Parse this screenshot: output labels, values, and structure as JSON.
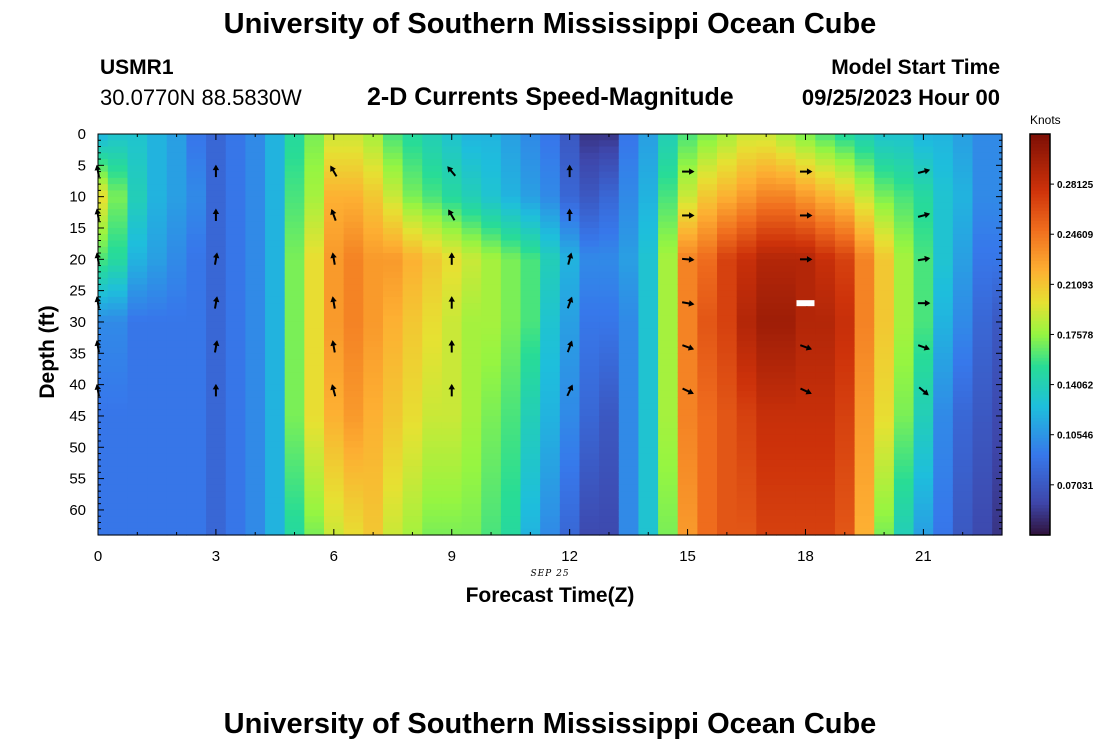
{
  "header": {
    "title": "University of Southern Mississippi Ocean Cube",
    "station": "USMR1",
    "coords": "30.0770N  88.5830W",
    "subtitle": "2-D Currents Speed-Magnitude",
    "start_label": "Model Start Time",
    "start_time": "09/25/2023 Hour 00"
  },
  "footer": {
    "title": "University of Southern Mississippi Ocean Cube"
  },
  "colorbar": {
    "title": "Knots",
    "tick_labels": [
      "0.28125",
      "0.24609",
      "0.21093",
      "0.17578",
      "0.14062",
      "0.10546",
      "0.07031"
    ],
    "tick_values": [
      0.28125,
      0.24609,
      0.21093,
      0.17578,
      0.14062,
      0.10546,
      0.07031
    ],
    "range": [
      0.0351,
      0.3164
    ]
  },
  "chart_data": {
    "type": "heatmap",
    "title": "2-D Currents Speed-Magnitude",
    "xlabel": "Forecast Time(Z)",
    "ylabel": "Depth (ft)",
    "date_label": "SEP 25",
    "x_ticks": [
      0,
      3,
      6,
      9,
      12,
      15,
      18,
      21
    ],
    "y_ticks": [
      0,
      5,
      10,
      15,
      20,
      25,
      30,
      35,
      40,
      45,
      50,
      55,
      60
    ],
    "xlim": [
      0,
      23
    ],
    "ylim": [
      0,
      64
    ],
    "units": "knots",
    "profile_hours": [
      0,
      0.5,
      1,
      1.5,
      2,
      2.5,
      3,
      3.5,
      4,
      4.5,
      5,
      5.5,
      6,
      6.5,
      7,
      7.5,
      8,
      8.5,
      9,
      9.5,
      10,
      10.5,
      11,
      11.5,
      12,
      12.5,
      13,
      13.5,
      14,
      14.5,
      15,
      15.5,
      16,
      16.5,
      17,
      17.5,
      18,
      18.5,
      19,
      19.5,
      20,
      20.5,
      21,
      21.5,
      22,
      22.5,
      23
    ],
    "profile_depths": [
      0,
      10,
      20,
      30,
      45,
      64
    ],
    "speed_profiles": [
      [
        0.12,
        0.2,
        0.16,
        0.1,
        0.09,
        0.09
      ],
      [
        0.13,
        0.17,
        0.15,
        0.1,
        0.09,
        0.09
      ],
      [
        0.13,
        0.14,
        0.12,
        0.09,
        0.09,
        0.09
      ],
      [
        0.12,
        0.12,
        0.11,
        0.09,
        0.09,
        0.09
      ],
      [
        0.11,
        0.11,
        0.1,
        0.09,
        0.09,
        0.09
      ],
      [
        0.09,
        0.1,
        0.09,
        0.09,
        0.09,
        0.09
      ],
      [
        0.08,
        0.08,
        0.08,
        0.08,
        0.08,
        0.08
      ],
      [
        0.09,
        0.09,
        0.09,
        0.09,
        0.09,
        0.09
      ],
      [
        0.1,
        0.1,
        0.1,
        0.1,
        0.1,
        0.1
      ],
      [
        0.12,
        0.12,
        0.12,
        0.12,
        0.12,
        0.12
      ],
      [
        0.15,
        0.16,
        0.17,
        0.17,
        0.17,
        0.15
      ],
      [
        0.17,
        0.18,
        0.2,
        0.2,
        0.2,
        0.17
      ],
      [
        0.19,
        0.22,
        0.23,
        0.23,
        0.22,
        0.19
      ],
      [
        0.19,
        0.22,
        0.24,
        0.24,
        0.23,
        0.2
      ],
      [
        0.18,
        0.21,
        0.23,
        0.23,
        0.22,
        0.21
      ],
      [
        0.16,
        0.19,
        0.23,
        0.22,
        0.21,
        0.19
      ],
      [
        0.15,
        0.17,
        0.22,
        0.21,
        0.2,
        0.18
      ],
      [
        0.14,
        0.16,
        0.21,
        0.2,
        0.19,
        0.17
      ],
      [
        0.13,
        0.15,
        0.2,
        0.19,
        0.19,
        0.17
      ],
      [
        0.12,
        0.14,
        0.19,
        0.18,
        0.18,
        0.17
      ],
      [
        0.12,
        0.13,
        0.18,
        0.18,
        0.17,
        0.16
      ],
      [
        0.11,
        0.12,
        0.17,
        0.17,
        0.16,
        0.15
      ],
      [
        0.1,
        0.11,
        0.16,
        0.16,
        0.14,
        0.12
      ],
      [
        0.09,
        0.1,
        0.14,
        0.13,
        0.12,
        0.1
      ],
      [
        0.07,
        0.08,
        0.12,
        0.11,
        0.1,
        0.08
      ],
      [
        0.05,
        0.07,
        0.1,
        0.09,
        0.08,
        0.06
      ],
      [
        0.05,
        0.08,
        0.1,
        0.09,
        0.07,
        0.06
      ],
      [
        0.09,
        0.1,
        0.11,
        0.1,
        0.1,
        0.1
      ],
      [
        0.11,
        0.12,
        0.13,
        0.13,
        0.13,
        0.13
      ],
      [
        0.14,
        0.16,
        0.18,
        0.18,
        0.18,
        0.17
      ],
      [
        0.16,
        0.19,
        0.24,
        0.24,
        0.24,
        0.23
      ],
      [
        0.17,
        0.21,
        0.25,
        0.26,
        0.25,
        0.25
      ],
      [
        0.18,
        0.22,
        0.27,
        0.27,
        0.26,
        0.26
      ],
      [
        0.19,
        0.23,
        0.28,
        0.29,
        0.27,
        0.26
      ],
      [
        0.19,
        0.24,
        0.29,
        0.3,
        0.28,
        0.27
      ],
      [
        0.18,
        0.24,
        0.29,
        0.3,
        0.28,
        0.27
      ],
      [
        0.17,
        0.23,
        0.29,
        0.29,
        0.28,
        0.27
      ],
      [
        0.16,
        0.22,
        0.28,
        0.29,
        0.28,
        0.27
      ],
      [
        0.15,
        0.21,
        0.27,
        0.28,
        0.27,
        0.26
      ],
      [
        0.14,
        0.19,
        0.24,
        0.24,
        0.23,
        0.22
      ],
      [
        0.13,
        0.17,
        0.21,
        0.21,
        0.2,
        0.17
      ],
      [
        0.13,
        0.16,
        0.18,
        0.18,
        0.17,
        0.14
      ],
      [
        0.12,
        0.15,
        0.16,
        0.16,
        0.14,
        0.11
      ],
      [
        0.12,
        0.13,
        0.13,
        0.12,
        0.1,
        0.09
      ],
      [
        0.11,
        0.12,
        0.11,
        0.1,
        0.08,
        0.07
      ],
      [
        0.1,
        0.1,
        0.09,
        0.08,
        0.07,
        0.06
      ],
      [
        0.1,
        0.1,
        0.09,
        0.07,
        0.06,
        0.05
      ]
    ],
    "vector_hours": [
      0,
      3,
      6,
      9,
      12,
      15,
      18,
      21
    ],
    "vector_depths": [
      6,
      13,
      20,
      27,
      34,
      41
    ],
    "vector_bearings_deg": [
      [
        350,
        350,
        350,
        350,
        350,
        350
      ],
      [
        0,
        0,
        10,
        10,
        10,
        0
      ],
      [
        330,
        340,
        350,
        350,
        350,
        345
      ],
      [
        320,
        330,
        0,
        0,
        0,
        0
      ],
      [
        0,
        0,
        15,
        20,
        20,
        25
      ],
      [
        90,
        90,
        95,
        100,
        110,
        115
      ],
      [
        90,
        90,
        90,
        100,
        110,
        115
      ],
      [
        75,
        75,
        80,
        90,
        110,
        130
      ]
    ],
    "marker": {
      "hour": 18,
      "depth": 27
    }
  }
}
